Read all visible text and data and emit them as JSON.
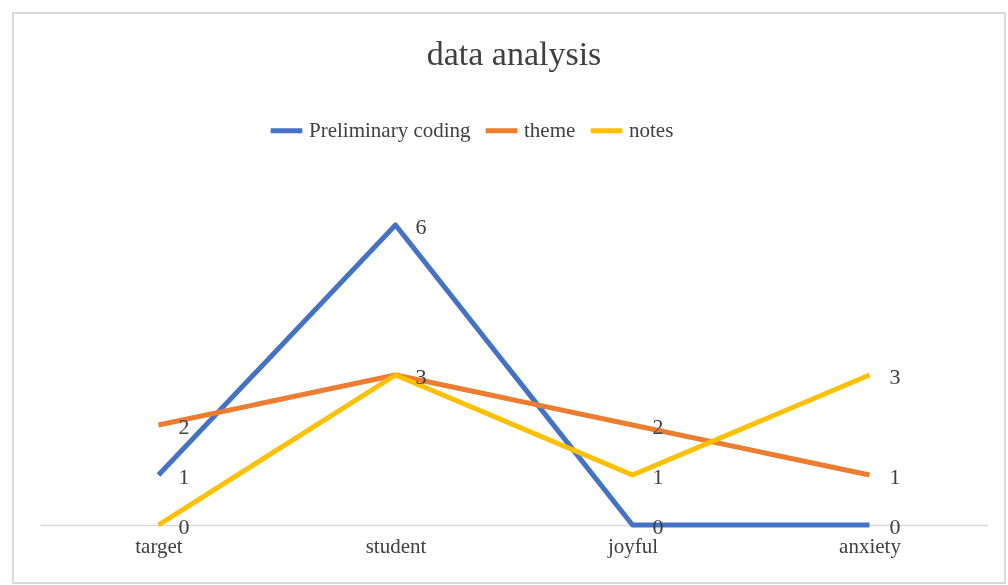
{
  "chart_data": {
    "type": "line",
    "title": "data analysis",
    "categories": [
      "target",
      "student",
      "joyful",
      "anxiety"
    ],
    "series": [
      {
        "name": "Preliminary coding",
        "color": "#4472c4",
        "values": [
          1,
          6,
          0,
          0
        ],
        "value_labels": [
          "1",
          "6",
          "0",
          "0"
        ]
      },
      {
        "name": "theme",
        "color": "#ed7d31",
        "values": [
          2,
          3,
          2,
          1
        ],
        "value_labels": [
          "2",
          "3",
          "2",
          "1"
        ]
      },
      {
        "name": "notes",
        "color": "#ffc000",
        "values": [
          0,
          3,
          1,
          3
        ],
        "value_labels": [
          "0",
          null,
          "1",
          "3"
        ]
      }
    ],
    "tick_labels": "x",
    "legend": "top",
    "marker": "none",
    "line_style": "solid"
  }
}
